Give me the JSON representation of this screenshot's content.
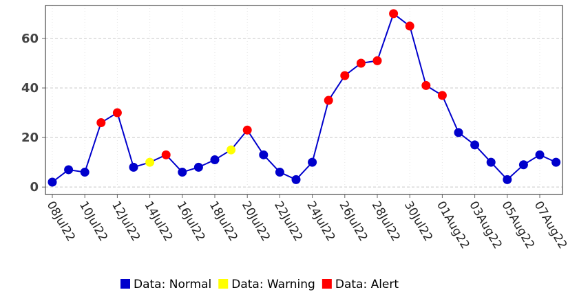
{
  "chart_data": {
    "type": "line",
    "categories": [
      "08Jul22",
      null,
      "10Jul22",
      null,
      "12Jul22",
      null,
      "14Jul22",
      null,
      "16Jul22",
      null,
      "18Jul22",
      null,
      "20Jul22",
      null,
      "22Jul22",
      null,
      "24Jul22",
      null,
      "26Jul22",
      null,
      "28Jul22",
      null,
      "30Jul22",
      null,
      "01Aug22",
      null,
      "03Aug22",
      null,
      "05Aug22",
      null,
      "07Aug22",
      null
    ],
    "series": [
      {
        "color": "#0000cc",
        "values": [
          2,
          7,
          6,
          26,
          30,
          8,
          10,
          13,
          6,
          8,
          11,
          15,
          23,
          13,
          6,
          3,
          10,
          35,
          45,
          50,
          51,
          70,
          65,
          41,
          37,
          22,
          17,
          10,
          3,
          9,
          13,
          10
        ]
      }
    ],
    "point_status": [
      0,
      0,
      0,
      2,
      2,
      0,
      1,
      2,
      0,
      0,
      0,
      1,
      2,
      0,
      0,
      0,
      0,
      2,
      2,
      2,
      2,
      2,
      2,
      2,
      2,
      0,
      0,
      0,
      0,
      0,
      0,
      0
    ],
    "legend": [
      {
        "name": "Data: Normal",
        "color": "#0000cc"
      },
      {
        "name": "Data: Warning",
        "color": "#ffff00"
      },
      {
        "name": "Data: Alert",
        "color": "#ff0000"
      }
    ],
    "ylim": [
      -3,
      73.3
    ],
    "yticks": [
      0,
      20,
      40,
      60
    ],
    "grid": true
  }
}
